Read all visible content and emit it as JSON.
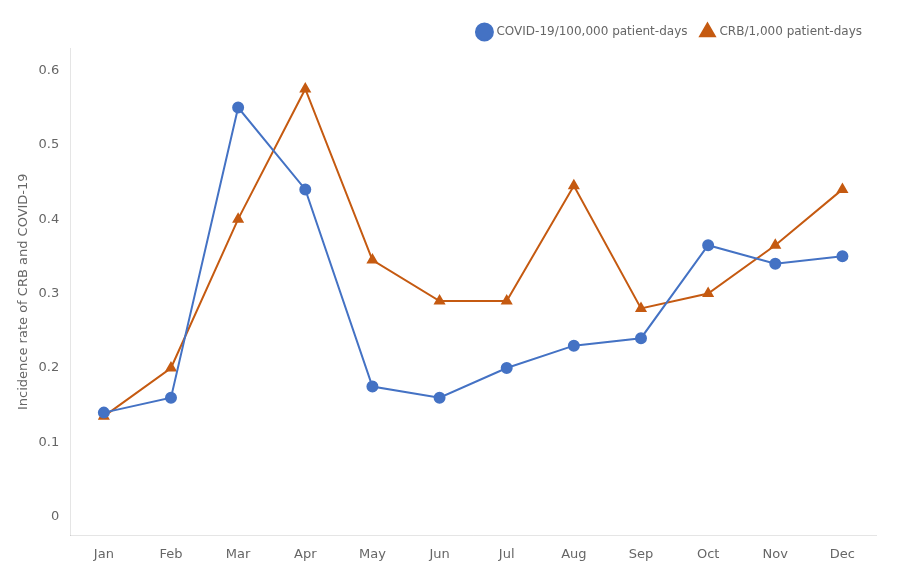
{
  "chart_data": {
    "type": "line",
    "categories": [
      "Jan",
      "Feb",
      "Mar",
      "Apr",
      "May",
      "Jun",
      "Jul",
      "Aug",
      "Sep",
      "Oct",
      "Nov",
      "Dec"
    ],
    "series": [
      {
        "name": "COVID-19/100,000 patient-days",
        "color": "#4472C4",
        "marker": "circle",
        "values": [
          0.14,
          0.16,
          0.55,
          0.44,
          0.175,
          0.16,
          0.2,
          0.23,
          0.24,
          0.365,
          0.34,
          0.35
        ]
      },
      {
        "name": "CRB/1,000 patient-days",
        "color": "#C55A11",
        "marker": "triangle",
        "values": [
          0.135,
          0.2,
          0.4,
          0.575,
          0.345,
          0.29,
          0.29,
          0.445,
          0.28,
          0.3,
          0.365,
          0.44
        ]
      }
    ],
    "ylabel": "Incidence rate of CRB and COVID-19",
    "ylim": [
      -0.025,
      0.63
    ],
    "yticks": [
      0,
      0.1,
      0.2,
      0.3,
      0.4,
      0.5,
      0.6
    ],
    "grid": false,
    "legend": "upper right"
  }
}
